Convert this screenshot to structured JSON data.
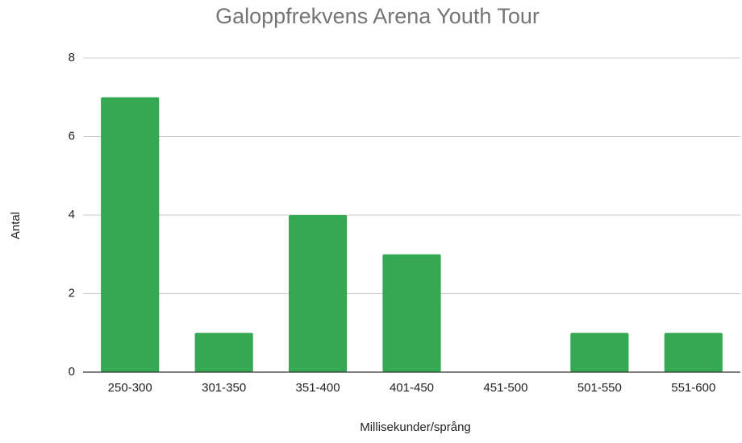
{
  "chart_data": {
    "type": "bar",
    "title": "Galoppfrekvens Arena Youth Tour",
    "x_label": "Millisekunder/språng",
    "y_label": "Antal",
    "categories": [
      "250-300",
      "301-350",
      "351-400",
      "401-450",
      "451-500",
      "501-550",
      "551-600"
    ],
    "values": [
      7,
      1,
      4,
      3,
      0,
      1,
      1
    ],
    "color": "#34a853",
    "ylim": [
      0,
      8
    ],
    "yticks": [
      0,
      2,
      4,
      6,
      8
    ],
    "grid": true
  }
}
